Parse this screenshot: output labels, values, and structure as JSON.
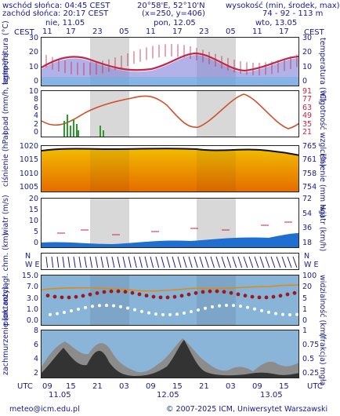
{
  "header": {
    "sunrise": "wschód słońca: 04:45 CEST",
    "sunset": "zachód słońca: 20:17 CEST",
    "coords": "20°58'E, 52°10'N",
    "grid": "(x=250, y=406)",
    "height_label": "wysokość (min, środek, max)",
    "height_values": "74 - 92 - 113 m"
  },
  "timezone_left": "CEST",
  "timezone_right": "CEST",
  "days_top": [
    "nie, 11.05",
    "pon, 12.05",
    "wto, 13.05"
  ],
  "hours_top": [
    "11",
    "17",
    "23",
    "05",
    "11",
    "17",
    "23",
    "05",
    "11",
    "17"
  ],
  "hours_bottom": [
    "09",
    "15",
    "21",
    "03",
    "09",
    "15",
    "21",
    "03",
    "09",
    "15"
  ],
  "days_bottom": [
    "11.05",
    "12.05",
    "13.05"
  ],
  "utc_label": "UTC",
  "panels": {
    "temperature": {
      "label_left": "temperatura (°C)",
      "label_right": "temperatura (°C)",
      "ticks_left": [
        "30",
        "20",
        "10",
        "0"
      ],
      "ticks_right": [
        "30",
        "20",
        "10",
        "0"
      ]
    },
    "precip": {
      "label_left": "opad (mm/h, kg/m²/h)",
      "label_right": "wilgotność wzgl. (%)",
      "ticks_left": [
        "10",
        "8",
        "6",
        "4",
        "2",
        "0"
      ],
      "ticks_right": [
        "91",
        "77",
        "63",
        "49",
        "35",
        "21"
      ]
    },
    "pressure": {
      "label_left": "ciśnienie (hPa)",
      "label_right": "ciśnienie (mm Hg)",
      "ticks_left": [
        "1020",
        "1015",
        "1010",
        "1005"
      ],
      "ticks_right": [
        "765",
        "761",
        "758",
        "754"
      ]
    },
    "wind": {
      "label_left": "wiatr (m/s)",
      "label_right": "wiatr (km/h)",
      "ticks_left": [
        "20",
        "15",
        "10",
        "5",
        "0"
      ],
      "ticks_right": [
        "72",
        "54",
        "36",
        "18"
      ]
    },
    "winddir": {
      "compass_left": [
        "N",
        "W",
        "E",
        "S"
      ],
      "compass_right": [
        "N",
        "W",
        "E",
        "S"
      ]
    },
    "visibility": {
      "label_left": "pion. rozciągł. chm. (km)",
      "label_right": "widzialność (km)",
      "ticks_left": [
        "15.0",
        "7.0",
        "3.0",
        "1.0",
        "0.0"
      ],
      "ticks_right": [
        "100",
        "20",
        "5",
        "1",
        "0"
      ]
    },
    "clouds": {
      "label_left": "zachmurzenie (oktanty)",
      "label_right": "(frakcja) mgła",
      "ticks_left": [
        "8",
        "6",
        "4",
        "2"
      ],
      "ticks_right": [
        "1",
        "0.75",
        "0.5",
        "0.25"
      ]
    }
  },
  "footer": {
    "email": "meteo@icm.edu.pl",
    "copyright": "© 2007-2025 ICM, Uniwersytet Warszawski"
  },
  "colors": {
    "text": "#1a1a8c",
    "temp_line": "#c0274a",
    "temp_fill": "#7f7fd8",
    "night_band": "#d8d8d8",
    "rh_line": "#d0502a",
    "precip_bar": "#2c9a2c",
    "pressure_top": "#f3c000",
    "pressure_bottom": "#e46a00",
    "wind_fill": "#1f6fd0",
    "vis_bg": "#88b4d8",
    "cloud_bg": "#8ab5d8",
    "cloud_dark": "#333333",
    "cloud_mid": "#8c8c8c"
  }
}
